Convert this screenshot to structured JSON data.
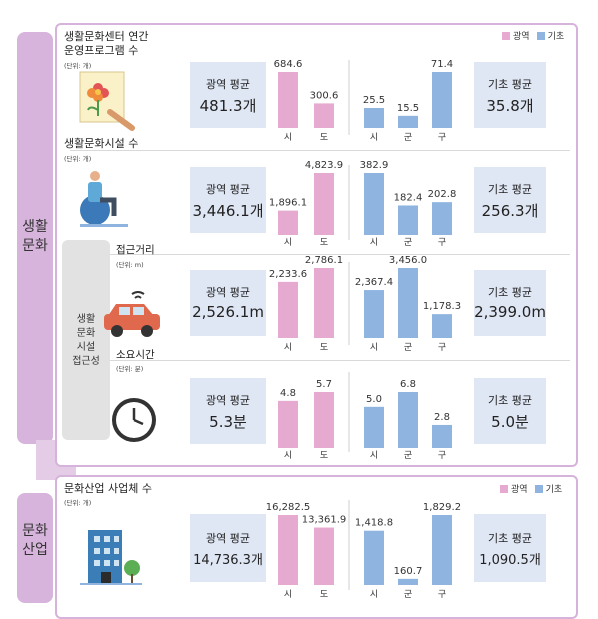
{
  "legend": {
    "metro": "광역",
    "basic": "기초",
    "metro_color": "#e6a9cf",
    "basic_color": "#8fb4e0"
  },
  "section_culture": {
    "label_line1": "생활",
    "label_line2": "문화"
  },
  "section_industry": {
    "label_line1": "문화",
    "label_line2": "산업"
  },
  "access_group": {
    "lines": [
      "생활",
      "문화",
      "시설",
      "접근성"
    ]
  },
  "panels": [
    {
      "title_line1": "생활문화센터 연간",
      "title_line2": "운영프로그램 수",
      "unit": "(단위: 개)",
      "icon": "painting-icon",
      "metro_avg_label": "광역 평균",
      "metro_avg_value": "481.3개",
      "basic_avg_label": "기초 평균",
      "basic_avg_value": "35.8개"
    },
    {
      "title_line1": "생활문화시설 수",
      "unit": "(단위: 개)",
      "icon": "exercise-ball-icon",
      "metro_avg_label": "광역 평균",
      "metro_avg_value": "3,446.1개",
      "basic_avg_label": "기초 평균",
      "basic_avg_value": "256.3개"
    },
    {
      "title_line1": "접근거리",
      "unit": "(단위: m)",
      "icon": "car-icon",
      "metro_avg_label": "광역 평균",
      "metro_avg_value": "2,526.1m",
      "basic_avg_label": "기초 평균",
      "basic_avg_value": "2,399.0m"
    },
    {
      "title_line1": "소요시간",
      "unit": "(단위: 분)",
      "icon": "clock-icon",
      "metro_avg_label": "광역 평균",
      "metro_avg_value": "5.3분",
      "basic_avg_label": "기초 평균",
      "basic_avg_value": "5.0분"
    },
    {
      "title_line1": "문화산업 사업체 수",
      "unit": "(단위: 개)",
      "icon": "building-icon",
      "metro_avg_label": "광역 평균",
      "metro_avg_value": "14,736.3개",
      "basic_avg_label": "기초 평균",
      "basic_avg_value": "1,090.5개"
    }
  ],
  "chart_data": [
    {
      "type": "bar",
      "series": [
        {
          "name": "광역",
          "categories": [
            "시",
            "도"
          ],
          "values": [
            684.6,
            300.6
          ],
          "labels": [
            "684.6",
            "300.6"
          ]
        },
        {
          "name": "기초",
          "categories": [
            "시",
            "군",
            "구"
          ],
          "values": [
            25.5,
            15.5,
            71.4
          ],
          "labels": [
            "25.5",
            "15.5",
            "71.4"
          ]
        }
      ]
    },
    {
      "type": "bar",
      "series": [
        {
          "name": "광역",
          "categories": [
            "시",
            "도"
          ],
          "values": [
            1896.1,
            4823.9
          ],
          "labels": [
            "1,896.1",
            "4,823.9"
          ]
        },
        {
          "name": "기초",
          "categories": [
            "시",
            "군",
            "구"
          ],
          "values": [
            382.9,
            182.4,
            202.8
          ],
          "labels": [
            "382.9",
            "182.4",
            "202.8"
          ]
        }
      ]
    },
    {
      "type": "bar",
      "series": [
        {
          "name": "광역",
          "categories": [
            "시",
            "도"
          ],
          "values": [
            2233.6,
            2786.1
          ],
          "labels": [
            "2,233.6",
            "2,786.1"
          ]
        },
        {
          "name": "기초",
          "categories": [
            "시",
            "군",
            "구"
          ],
          "values": [
            2367.4,
            3456.0,
            1178.3
          ],
          "labels": [
            "2,367.4",
            "3,456.0",
            "1,178.3"
          ]
        }
      ]
    },
    {
      "type": "bar",
      "series": [
        {
          "name": "광역",
          "categories": [
            "시",
            "도"
          ],
          "values": [
            4.8,
            5.7
          ],
          "labels": [
            "4.8",
            "5.7"
          ]
        },
        {
          "name": "기초",
          "categories": [
            "시",
            "군",
            "구"
          ],
          "values": [
            5.0,
            6.8,
            2.8
          ],
          "labels": [
            "5.0",
            "6.8",
            "2.8"
          ]
        }
      ]
    },
    {
      "type": "bar",
      "series": [
        {
          "name": "광역",
          "categories": [
            "시",
            "도"
          ],
          "values": [
            16282.5,
            13361.9
          ],
          "labels": [
            "16,282.5",
            "13,361.9"
          ]
        },
        {
          "name": "기초",
          "categories": [
            "시",
            "군",
            "구"
          ],
          "values": [
            1418.8,
            160.7,
            1829.2
          ],
          "labels": [
            "1,418.8",
            "160.7",
            "1,829.2"
          ]
        }
      ]
    }
  ]
}
